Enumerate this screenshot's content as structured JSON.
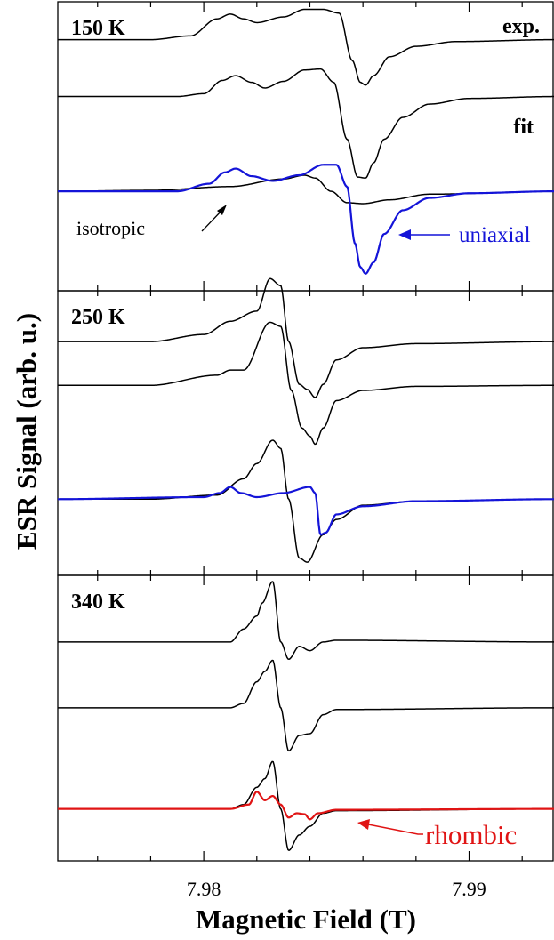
{
  "figure": {
    "ylabel": "ESR Signal (arb. u.)",
    "xlabel": "Magnetic Field (T)"
  },
  "chart_data": {
    "type": "line",
    "xlim": [
      7.9745,
      7.9932
    ],
    "x_ticks": [
      7.98,
      7.99
    ],
    "x_tick_labels": [
      "7.98",
      "7.99"
    ],
    "xlabel": "Magnetic Field (T)",
    "ylabel": "ESR Signal (arb. u.)",
    "grid": false,
    "colors": {
      "black": "#000000",
      "uniaxial": "#1414d8",
      "rhombic": "#e01414"
    },
    "panels": [
      {
        "label": "150 K",
        "ylim": [
          -1.05,
          2.0
        ],
        "annotations": {
          "exp": "exp.",
          "fit": "fit",
          "isotropic": "isotropic",
          "uniaxial": "uniaxial"
        },
        "series": [
          {
            "role": "experimental",
            "offset": 1.6,
            "color": "#000000",
            "x": [
              7.9745,
              7.978,
              7.9795,
              7.9805,
              7.981,
              7.9815,
              7.982,
              7.983,
              7.9838,
              7.9845,
              7.9851,
              7.9856,
              7.9859,
              7.9861,
              7.9864,
              7.987,
              7.988,
              7.9895,
              7.9932
            ],
            "y": [
              0.0,
              0.0,
              0.04,
              0.22,
              0.27,
              0.22,
              0.18,
              0.24,
              0.32,
              0.32,
              0.28,
              -0.22,
              -0.45,
              -0.48,
              -0.38,
              -0.18,
              -0.07,
              -0.02,
              0.0
            ]
          },
          {
            "role": "fit",
            "offset": 1.0,
            "color": "#000000",
            "x": [
              7.9745,
              7.979,
              7.98,
              7.9807,
              7.9812,
              7.9818,
              7.9823,
              7.983,
              7.9838,
              7.9844,
              7.9849,
              7.9854,
              7.9858,
              7.9861,
              7.9864,
              7.9868,
              7.9875,
              7.9885,
              7.99,
              7.9932
            ],
            "y": [
              0.0,
              0.0,
              0.03,
              0.17,
              0.22,
              0.15,
              0.09,
              0.16,
              0.28,
              0.29,
              0.15,
              -0.45,
              -0.85,
              -0.86,
              -0.7,
              -0.45,
              -0.22,
              -0.08,
              -0.02,
              0.0
            ]
          },
          {
            "role": "isotropic component",
            "offset": 0.0,
            "color": "#000000",
            "x": [
              7.9745,
              7.978,
              7.981,
              7.983,
              7.9838,
              7.9842,
              7.9848,
              7.9854,
              7.986,
              7.987,
              7.9885,
              7.9932
            ],
            "y": [
              0.0,
              0.01,
              0.05,
              0.13,
              0.17,
              0.14,
              0.0,
              -0.12,
              -0.13,
              -0.09,
              -0.03,
              0.0
            ]
          },
          {
            "role": "uniaxial component",
            "offset": 0.0,
            "color": "#1414d8",
            "x": [
              7.9745,
              7.979,
              7.9802,
              7.9808,
              7.9812,
              7.9818,
              7.9826,
              7.9836,
              7.9845,
              7.985,
              7.9854,
              7.9857,
              7.9859,
              7.9861,
              7.9864,
              7.9868,
              7.9875,
              7.9885,
              7.99,
              7.9932
            ],
            "y": [
              0.0,
              0.0,
              0.08,
              0.2,
              0.24,
              0.16,
              0.11,
              0.17,
              0.28,
              0.28,
              0.05,
              -0.55,
              -0.8,
              -0.87,
              -0.75,
              -0.45,
              -0.2,
              -0.07,
              -0.02,
              0.0
            ]
          }
        ]
      },
      {
        "label": "250 K",
        "ylim": [
          -0.75,
          2.05
        ],
        "series": [
          {
            "role": "experimental",
            "offset": 1.55,
            "color": "#000000",
            "x": [
              7.9745,
              7.978,
              7.98,
              7.981,
              7.982,
              7.9825,
              7.9829,
              7.9832,
              7.9836,
              7.9839,
              7.9842,
              7.9845,
              7.985,
              7.986,
              7.988,
              7.9932
            ],
            "y": [
              0.0,
              0.0,
              0.07,
              0.2,
              0.3,
              0.62,
              0.55,
              0.0,
              -0.42,
              -0.47,
              -0.55,
              -0.42,
              -0.18,
              -0.06,
              -0.02,
              0.0
            ]
          },
          {
            "role": "fit",
            "offset": 1.12,
            "color": "#000000",
            "x": [
              7.9745,
              7.978,
              7.9805,
              7.981,
              7.9815,
              7.9825,
              7.9829,
              7.9833,
              7.9837,
              7.984,
              7.9842,
              7.9845,
              7.985,
              7.986,
              7.988,
              7.9932
            ],
            "y": [
              0.0,
              0.0,
              0.1,
              0.15,
              0.15,
              0.62,
              0.58,
              -0.05,
              -0.42,
              -0.5,
              -0.58,
              -0.42,
              -0.15,
              -0.05,
              -0.01,
              0.0
            ]
          },
          {
            "role": "black component",
            "offset": 0.0,
            "color": "#000000",
            "x": [
              7.9745,
              7.978,
              7.9805,
              7.9815,
              7.982,
              7.9826,
              7.9829,
              7.9832,
              7.9836,
              7.9839,
              7.9845,
              7.985,
              7.986,
              7.988,
              7.9932
            ],
            "y": [
              0.0,
              0.0,
              0.04,
              0.2,
              0.35,
              0.58,
              0.5,
              0.0,
              -0.58,
              -0.62,
              -0.35,
              -0.2,
              -0.06,
              -0.02,
              0.0
            ]
          },
          {
            "role": "uniaxial component",
            "offset": 0.0,
            "color": "#1414d8",
            "x": [
              7.9745,
              7.98,
              7.9806,
              7.981,
              7.9814,
              7.982,
              7.983,
              7.984,
              7.9842,
              7.9844,
              7.9846,
              7.985,
              7.986,
              7.988,
              7.9932
            ],
            "y": [
              0.0,
              0.02,
              0.06,
              0.12,
              0.06,
              0.02,
              0.06,
              0.12,
              0.06,
              -0.35,
              -0.33,
              -0.15,
              -0.07,
              -0.02,
              0.0
            ]
          }
        ]
      },
      {
        "label": "340 K",
        "ylim": [
          -0.6,
          2.7
        ],
        "annotations": {
          "rhombic": "rhombic"
        },
        "series": [
          {
            "role": "experimental",
            "offset": 1.93,
            "color": "#000000",
            "x": [
              7.9745,
              7.981,
              7.9815,
              7.982,
              7.9822,
              7.9826,
              7.9829,
              7.9832,
              7.9836,
              7.984,
              7.9845,
              7.985,
              7.9932
            ],
            "y": [
              0.0,
              0.0,
              0.15,
              0.3,
              0.45,
              0.7,
              0.0,
              -0.2,
              -0.05,
              -0.1,
              0.0,
              0.02,
              0.0
            ]
          },
          {
            "role": "fit",
            "offset": 1.17,
            "color": "#000000",
            "x": [
              7.9745,
              7.981,
              7.9815,
              7.982,
              7.9823,
              7.9826,
              7.9829,
              7.9832,
              7.9836,
              7.984,
              7.9845,
              7.985,
              7.9932
            ],
            "y": [
              0.0,
              0.0,
              0.05,
              0.3,
              0.42,
              0.55,
              0.0,
              -0.5,
              -0.32,
              -0.3,
              -0.08,
              -0.02,
              0.0
            ]
          },
          {
            "role": "black component",
            "offset": 0.0,
            "color": "#000000",
            "x": [
              7.9745,
              7.981,
              7.9815,
              7.982,
              7.9823,
              7.9826,
              7.9829,
              7.9832,
              7.9836,
              7.984,
              7.9845,
              7.985,
              7.9932
            ],
            "y": [
              0.0,
              0.0,
              0.05,
              0.25,
              0.35,
              0.55,
              0.0,
              -0.48,
              -0.3,
              -0.2,
              -0.05,
              -0.02,
              0.0
            ]
          },
          {
            "role": "rhombic component",
            "offset": 0.0,
            "color": "#e01414",
            "x": [
              7.9745,
              7.981,
              7.9817,
              7.982,
              7.9823,
              7.9826,
              7.9829,
              7.9832,
              7.9835,
              7.9838,
              7.984,
              7.9843,
              7.985,
              7.9932
            ],
            "y": [
              0.0,
              0.0,
              0.05,
              0.2,
              0.1,
              0.15,
              0.05,
              -0.1,
              -0.05,
              -0.06,
              -0.12,
              -0.05,
              -0.01,
              0.0
            ]
          }
        ]
      }
    ]
  }
}
